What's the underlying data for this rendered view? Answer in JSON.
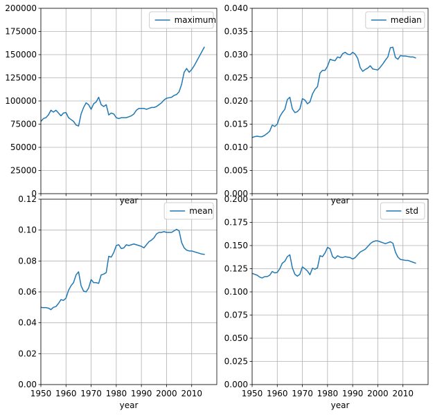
{
  "chart_data": [
    {
      "type": "line",
      "xlabel": "year",
      "ylabel": "",
      "xlim": [
        1950,
        2020
      ],
      "ylim": [
        0,
        200000
      ],
      "x_ticks": [
        1950,
        1960,
        1970,
        1980,
        1990,
        2000,
        2010
      ],
      "x_tick_labels_shown": false,
      "y_ticks": [
        0,
        25000,
        50000,
        75000,
        100000,
        125000,
        150000,
        175000,
        200000
      ],
      "grid": true,
      "legend_position": "top-right",
      "color": "#1f77b4",
      "series": [
        {
          "name": "maximum",
          "x": [
            1950,
            1951,
            1952,
            1953,
            1954,
            1955,
            1956,
            1957,
            1958,
            1959,
            1960,
            1961,
            1962,
            1963,
            1964,
            1965,
            1966,
            1967,
            1968,
            1969,
            1970,
            1971,
            1972,
            1973,
            1974,
            1975,
            1976,
            1977,
            1978,
            1979,
            1980,
            1981,
            1982,
            1983,
            1984,
            1985,
            1986,
            1987,
            1988,
            1989,
            1990,
            1991,
            1992,
            1993,
            1994,
            1995,
            1996,
            1997,
            1998,
            1999,
            2000,
            2001,
            2002,
            2003,
            2004,
            2005,
            2006,
            2007,
            2008,
            2009,
            2010,
            2011,
            2012,
            2013,
            2014,
            2015
          ],
          "values": [
            78000,
            81000,
            82000,
            85000,
            90000,
            88000,
            90000,
            87000,
            84000,
            87000,
            87500,
            82000,
            80000,
            78000,
            74000,
            73000,
            86000,
            93000,
            98000,
            96000,
            91000,
            97000,
            99000,
            104000,
            96000,
            94000,
            96000,
            85000,
            87000,
            86000,
            82000,
            81000,
            82000,
            82000,
            82000,
            83000,
            84000,
            86000,
            90000,
            92000,
            92000,
            92000,
            91000,
            92000,
            93000,
            93000,
            94000,
            96000,
            98000,
            101000,
            103000,
            103500,
            104000,
            106000,
            107000,
            110000,
            118000,
            131000,
            135000,
            131000,
            134000,
            138000,
            143000,
            148000,
            153000,
            158000
          ]
        }
      ]
    },
    {
      "type": "line",
      "xlabel": "year",
      "ylabel": "",
      "xlim": [
        1950,
        2020
      ],
      "ylim": [
        0,
        0.04
      ],
      "x_ticks": [
        1950,
        1960,
        1970,
        1980,
        1990,
        2000,
        2010
      ],
      "x_tick_labels_shown": false,
      "y_ticks": [
        0,
        0.005,
        0.01,
        0.015,
        0.02,
        0.025,
        0.03,
        0.035,
        0.04
      ],
      "grid": true,
      "legend_position": "top-right",
      "color": "#1f77b4",
      "series": [
        {
          "name": "median",
          "x": [
            1950,
            1951,
            1952,
            1953,
            1954,
            1955,
            1956,
            1957,
            1958,
            1959,
            1960,
            1961,
            1962,
            1963,
            1964,
            1965,
            1966,
            1967,
            1968,
            1969,
            1970,
            1971,
            1972,
            1973,
            1974,
            1975,
            1976,
            1977,
            1978,
            1979,
            1980,
            1981,
            1982,
            1983,
            1984,
            1985,
            1986,
            1987,
            1988,
            1989,
            1990,
            1991,
            1992,
            1993,
            1994,
            1995,
            1996,
            1997,
            1998,
            1999,
            2000,
            2001,
            2002,
            2003,
            2004,
            2005,
            2006,
            2007,
            2008,
            2009,
            2010,
            2011,
            2012,
            2013,
            2014,
            2015
          ],
          "values": [
            0.0121,
            0.0123,
            0.0124,
            0.0123,
            0.0123,
            0.0126,
            0.013,
            0.0135,
            0.0148,
            0.0145,
            0.015,
            0.0166,
            0.0175,
            0.0182,
            0.0203,
            0.0208,
            0.0183,
            0.0175,
            0.0177,
            0.0183,
            0.0205,
            0.0202,
            0.0194,
            0.0198,
            0.0215,
            0.0225,
            0.0231,
            0.026,
            0.0266,
            0.0266,
            0.0275,
            0.029,
            0.0288,
            0.0287,
            0.0295,
            0.0293,
            0.0302,
            0.0305,
            0.0301,
            0.03,
            0.0305,
            0.0301,
            0.0292,
            0.0272,
            0.0264,
            0.0268,
            0.0271,
            0.0276,
            0.0269,
            0.0268,
            0.0267,
            0.0273,
            0.028,
            0.0288,
            0.0295,
            0.0315,
            0.0316,
            0.0294,
            0.029,
            0.0298,
            0.0297,
            0.0297,
            0.0296,
            0.0295,
            0.0295,
            0.0293
          ]
        }
      ]
    },
    {
      "type": "line",
      "xlabel": "year",
      "ylabel": "",
      "xlim": [
        1950,
        2020
      ],
      "ylim": [
        0,
        0.12
      ],
      "x_ticks": [
        1950,
        1960,
        1970,
        1980,
        1990,
        2000,
        2010
      ],
      "x_tick_labels_shown": true,
      "y_ticks": [
        0,
        0.02,
        0.04,
        0.06,
        0.08,
        0.1,
        0.12
      ],
      "grid": true,
      "legend_position": "top-right",
      "color": "#1f77b4",
      "series": [
        {
          "name": "mean",
          "x": [
            1950,
            1951,
            1952,
            1953,
            1954,
            1955,
            1956,
            1957,
            1958,
            1959,
            1960,
            1961,
            1962,
            1963,
            1964,
            1965,
            1966,
            1967,
            1968,
            1969,
            1970,
            1971,
            1972,
            1973,
            1974,
            1975,
            1976,
            1977,
            1978,
            1979,
            1980,
            1981,
            1982,
            1983,
            1984,
            1985,
            1986,
            1987,
            1988,
            1989,
            1990,
            1991,
            1992,
            1993,
            1994,
            1995,
            1996,
            1997,
            1998,
            1999,
            2000,
            2001,
            2002,
            2003,
            2004,
            2005,
            2006,
            2007,
            2008,
            2009,
            2010,
            2011,
            2012,
            2013,
            2014,
            2015
          ],
          "values": [
            0.05,
            0.0498,
            0.0498,
            0.0495,
            0.0485,
            0.05,
            0.0505,
            0.0525,
            0.055,
            0.0545,
            0.056,
            0.061,
            0.064,
            0.066,
            0.071,
            0.073,
            0.064,
            0.0605,
            0.06,
            0.0625,
            0.068,
            0.066,
            0.066,
            0.0655,
            0.071,
            0.0715,
            0.0725,
            0.083,
            0.0825,
            0.0855,
            0.09,
            0.0905,
            0.088,
            0.0885,
            0.0905,
            0.09,
            0.0905,
            0.091,
            0.0905,
            0.09,
            0.0895,
            0.0885,
            0.0905,
            0.0925,
            0.0935,
            0.095,
            0.0975,
            0.0985,
            0.0985,
            0.099,
            0.0985,
            0.0985,
            0.0985,
            0.0995,
            0.1005,
            0.0995,
            0.092,
            0.0885,
            0.087,
            0.0865,
            0.0865,
            0.086,
            0.0855,
            0.085,
            0.0845,
            0.0843
          ]
        }
      ]
    },
    {
      "type": "line",
      "xlabel": "year",
      "ylabel": "",
      "xlim": [
        1950,
        2020
      ],
      "ylim": [
        0,
        0.2
      ],
      "x_ticks": [
        1950,
        1960,
        1970,
        1980,
        1990,
        2000,
        2010
      ],
      "x_tick_labels_shown": true,
      "y_ticks": [
        0,
        0.025,
        0.05,
        0.075,
        0.1,
        0.125,
        0.15,
        0.175,
        0.2
      ],
      "grid": true,
      "legend_position": "top-right",
      "color": "#1f77b4",
      "series": [
        {
          "name": "std",
          "x": [
            1950,
            1951,
            1952,
            1953,
            1954,
            1955,
            1956,
            1957,
            1958,
            1959,
            1960,
            1961,
            1962,
            1963,
            1964,
            1965,
            1966,
            1967,
            1968,
            1969,
            1970,
            1971,
            1972,
            1973,
            1974,
            1975,
            1976,
            1977,
            1978,
            1979,
            1980,
            1981,
            1982,
            1983,
            1984,
            1985,
            1986,
            1987,
            1988,
            1989,
            1990,
            1991,
            1992,
            1993,
            1994,
            1995,
            1996,
            1997,
            1998,
            1999,
            2000,
            2001,
            2002,
            2003,
            2004,
            2005,
            2006,
            2007,
            2008,
            2009,
            2010,
            2011,
            2012,
            2013,
            2014,
            2015
          ],
          "values": [
            0.12,
            0.119,
            0.118,
            0.116,
            0.115,
            0.1165,
            0.1165,
            0.118,
            0.122,
            0.1205,
            0.121,
            0.125,
            0.131,
            0.133,
            0.138,
            0.14,
            0.126,
            0.119,
            0.117,
            0.119,
            0.127,
            0.125,
            0.1225,
            0.1185,
            0.1255,
            0.1245,
            0.126,
            0.139,
            0.138,
            0.142,
            0.148,
            0.1465,
            0.138,
            0.136,
            0.139,
            0.1375,
            0.137,
            0.138,
            0.1375,
            0.137,
            0.1355,
            0.137,
            0.14,
            0.143,
            0.1445,
            0.146,
            0.149,
            0.152,
            0.154,
            0.155,
            0.155,
            0.154,
            0.153,
            0.152,
            0.153,
            0.154,
            0.1525,
            0.143,
            0.1375,
            0.135,
            0.1345,
            0.134,
            0.134,
            0.133,
            0.132,
            0.131
          ]
        }
      ]
    }
  ]
}
